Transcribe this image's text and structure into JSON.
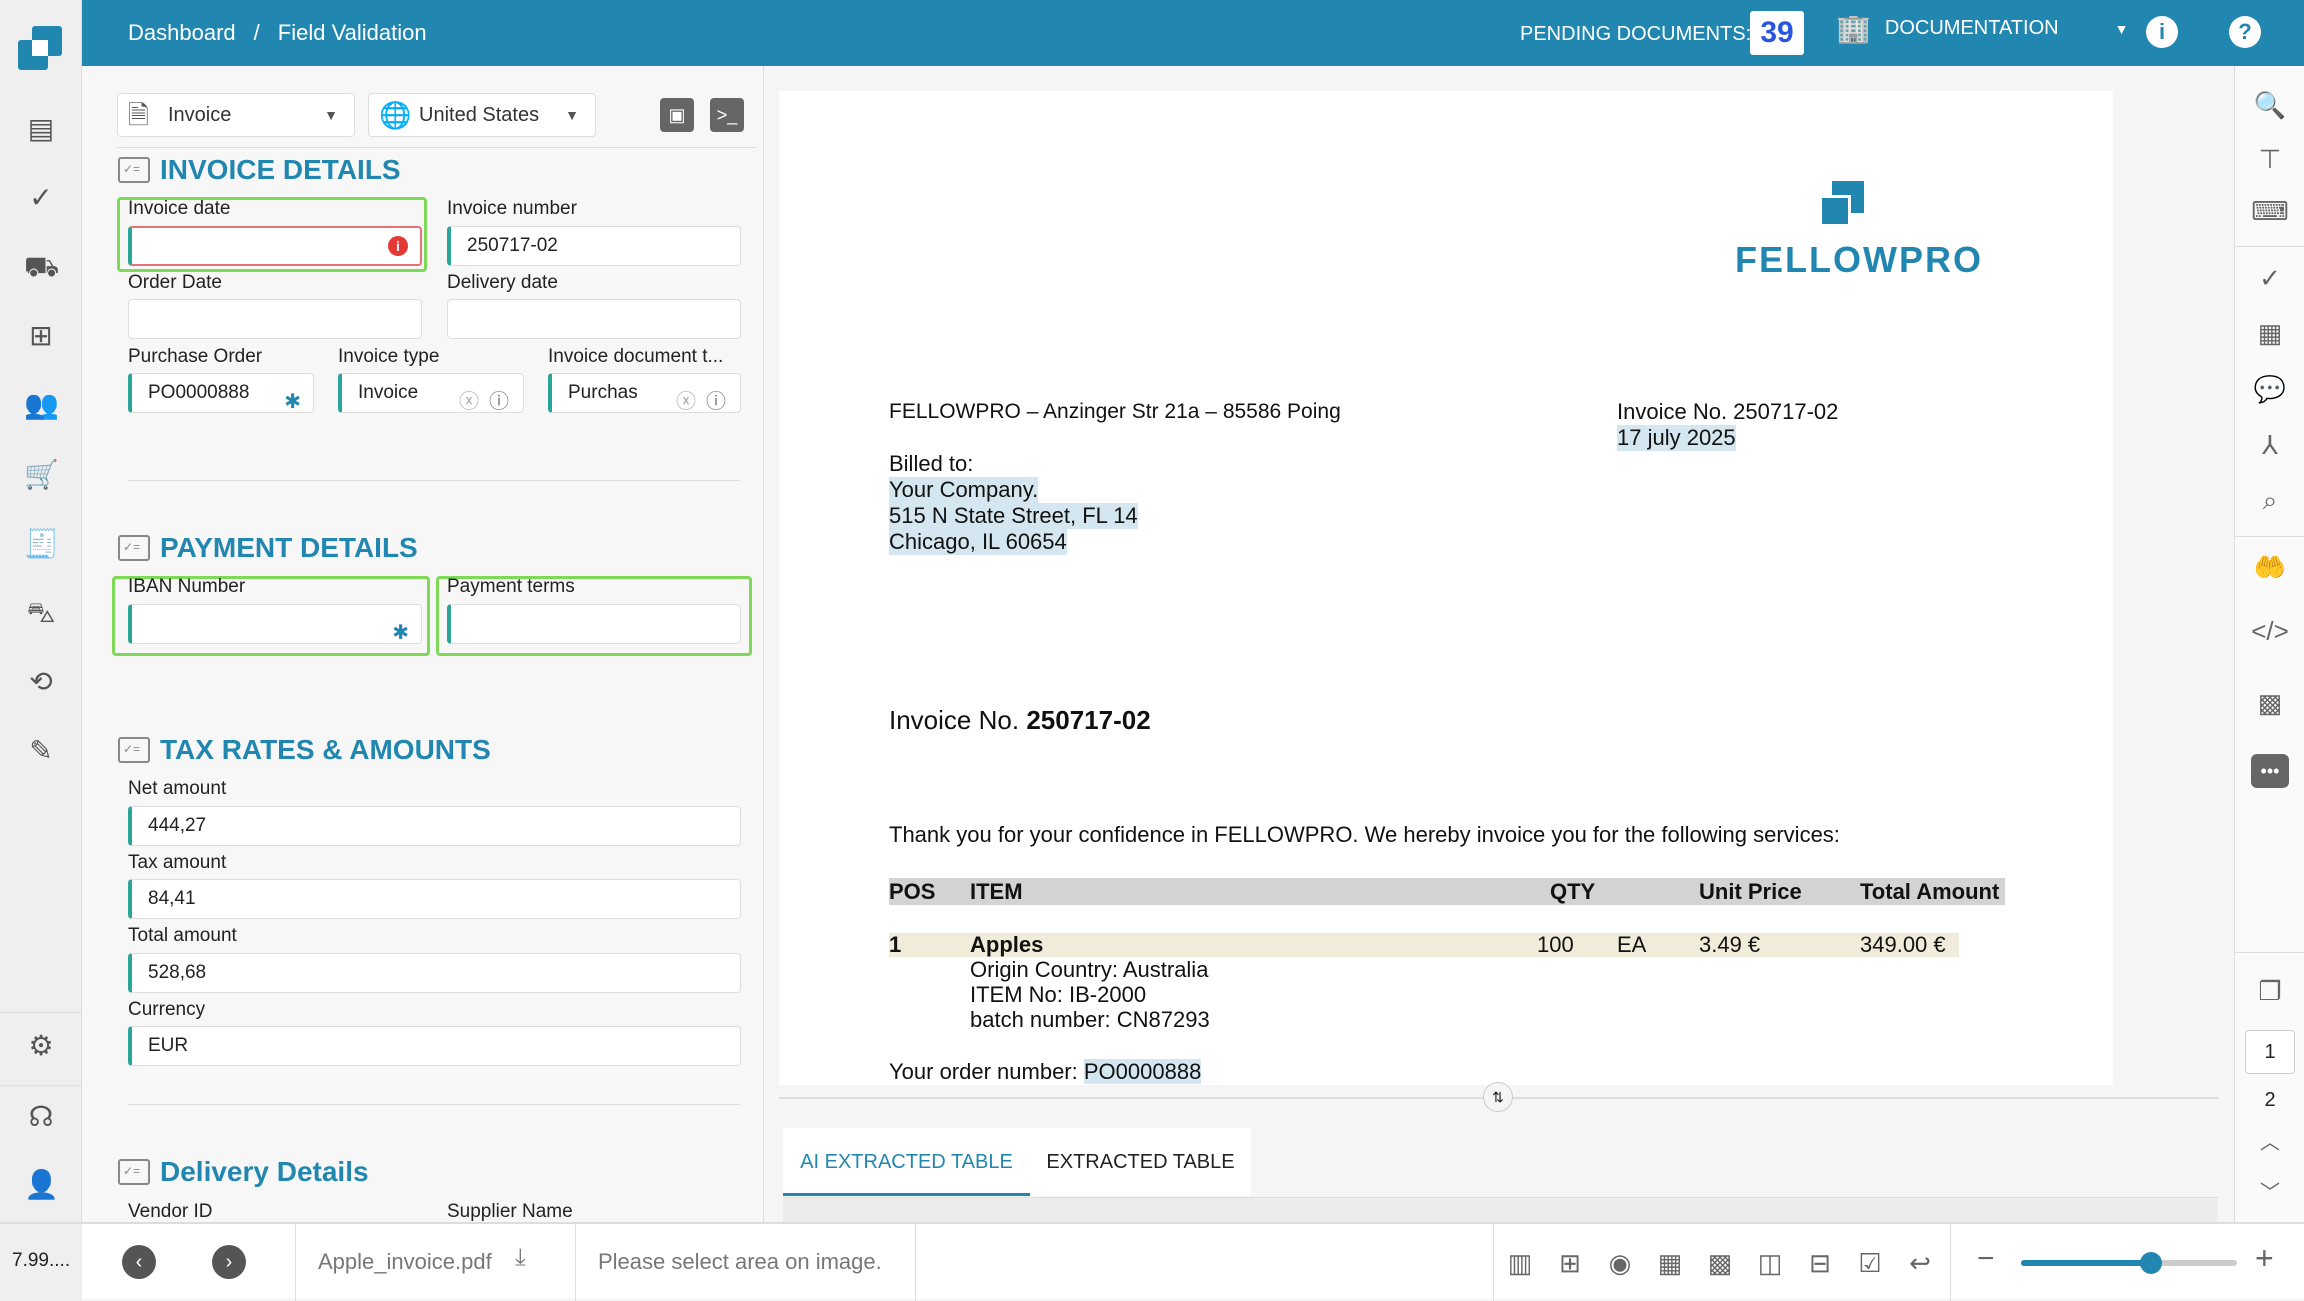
{
  "header": {
    "breadcrumb": [
      "Dashboard",
      "Field Validation"
    ],
    "separator": "/",
    "pending_label": "PENDING DOCUMENTS:",
    "pending_count": "39",
    "org": "DOCUMENTATION",
    "accent": "#2287b0"
  },
  "leftnav": {
    "icons": [
      "document-icon",
      "check-circle-icon",
      "truck-icon",
      "hierarchy-icon",
      "users-icon",
      "cart-icon",
      "invoice-icon",
      "cart-add-icon",
      "integration-icon",
      "magic-wand-icon",
      "settings-icon",
      "support-icon",
      "user-icon"
    ],
    "version": "7.99...."
  },
  "form": {
    "doc_type": "Invoice",
    "country": "United States",
    "sections": {
      "invoice": "INVOICE DETAILS",
      "payment": "PAYMENT DETAILS",
      "tax": "TAX RATES & AMOUNTS",
      "delivery": "Delivery Details"
    },
    "fields": {
      "invoice_date": {
        "label": "Invoice date",
        "value": ""
      },
      "invoice_number": {
        "label": "Invoice number",
        "value": "250717-02"
      },
      "order_date": {
        "label": "Order Date",
        "value": ""
      },
      "delivery_date": {
        "label": "Delivery date",
        "value": ""
      },
      "purchase_order": {
        "label": "Purchase Order",
        "value": "PO0000888"
      },
      "invoice_type": {
        "label": "Invoice type",
        "value": "Invoice"
      },
      "invoice_doc_type": {
        "label": "Invoice document t...",
        "value": "Purchas"
      },
      "iban": {
        "label": "IBAN Number",
        "value": ""
      },
      "payment_terms": {
        "label": "Payment terms",
        "value": ""
      },
      "net_amount": {
        "label": "Net amount",
        "value": "444,27"
      },
      "tax_amount": {
        "label": "Tax amount",
        "value": "84,41"
      },
      "total_amount": {
        "label": "Total amount",
        "value": "528,68"
      },
      "currency": {
        "label": "Currency",
        "value": "EUR"
      },
      "vendor_id": {
        "label": "Vendor ID"
      },
      "supplier_name": {
        "label": "Supplier Name"
      }
    }
  },
  "document": {
    "logo": "FELLOWPRO",
    "sender": "FELLOWPRO – Anzinger Str 21a – 85586 Poing",
    "invoice_no_line": "Invoice No. 250717-02",
    "date": "17 july 2025",
    "billed_to": "Billed to:",
    "address": [
      "Your Company.",
      "515 N State Street, FL 14",
      "Chicago, IL 60654"
    ],
    "title_prefix": "Invoice No.",
    "title_number": "250717-02",
    "intro": "Thank you for your confidence in FELLOWPRO. We hereby invoice you for the following services:",
    "table": {
      "headers": [
        "POS",
        "ITEM",
        "QTY",
        "Unit Price",
        "Total Amount"
      ],
      "row": {
        "pos": "1",
        "item": "Apples",
        "qty": "100",
        "unit": "EA",
        "price": "3.49 €",
        "total": "349.00 €"
      },
      "details": [
        "Origin Country: Australia",
        "ITEM No: IB-2000",
        "batch number: CN87293"
      ]
    },
    "order_label": "Your order number:",
    "order_number": "PO0000888"
  },
  "tabs": [
    "AI EXTRACTED TABLE",
    "EXTRACTED TABLE"
  ],
  "pager": {
    "pages": [
      "1",
      "2"
    ]
  },
  "bottom": {
    "filename": "Apple_invoice.pdf",
    "status": "Please select area on image.",
    "zoom_fraction": 0.6
  }
}
